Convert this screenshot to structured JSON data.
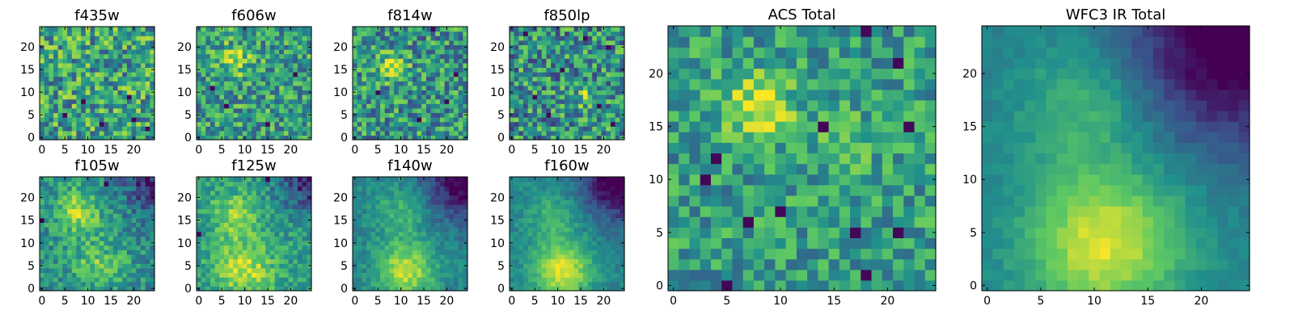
{
  "figure": {
    "colormap": "viridis",
    "colormap_stops": [
      "#440154",
      "#3b528b",
      "#21918c",
      "#5ec962",
      "#fde725"
    ],
    "frame_color": "#000000",
    "background": "#ffffff"
  },
  "chart_data": [
    {
      "type": "heatmap",
      "key": "f435w",
      "title": "f435w",
      "grid": [
        25,
        25
      ],
      "x": [
        0,
        24
      ],
      "y": [
        0,
        24
      ],
      "xticks": [
        0,
        5,
        10,
        15,
        20
      ],
      "yticks": [
        0,
        5,
        10,
        15,
        20
      ],
      "xtick_labels": [
        "0",
        "5",
        "10",
        "15",
        "20"
      ],
      "ytick_labels": [
        "0",
        "5",
        "10",
        "15",
        "20"
      ],
      "value_range": [
        0,
        1
      ],
      "pattern": "noise",
      "base": 0.58,
      "noise": 0.32,
      "blobs": [],
      "dark_spots": [
        [
          5,
          5
        ],
        [
          19,
          9
        ],
        [
          20,
          4
        ],
        [
          9,
          8
        ],
        [
          13,
          3
        ],
        [
          23,
          2
        ]
      ],
      "seed": 11
    },
    {
      "type": "heatmap",
      "key": "f606w",
      "title": "f606w",
      "grid": [
        25,
        25
      ],
      "x": [
        0,
        24
      ],
      "y": [
        0,
        24
      ],
      "xticks": [
        0,
        5,
        10,
        15,
        20
      ],
      "yticks": [
        0,
        5,
        10,
        15,
        20
      ],
      "xtick_labels": [
        "0",
        "5",
        "10",
        "15",
        "20"
      ],
      "ytick_labels": [
        "0",
        "5",
        "10",
        "15",
        "20"
      ],
      "value_range": [
        0,
        1
      ],
      "pattern": "noise",
      "base": 0.55,
      "noise": 0.28,
      "blobs": [
        {
          "cx": 8,
          "cy": 17,
          "amp": 0.3,
          "sig": 2.5
        }
      ],
      "dark_spots": [
        [
          6,
          7
        ],
        [
          15,
          3
        ],
        [
          21,
          14
        ],
        [
          3,
          11
        ]
      ],
      "seed": 23
    },
    {
      "type": "heatmap",
      "key": "f814w",
      "title": "f814w",
      "grid": [
        25,
        25
      ],
      "x": [
        0,
        24
      ],
      "y": [
        0,
        24
      ],
      "xticks": [
        0,
        5,
        10,
        15,
        20
      ],
      "yticks": [
        0,
        5,
        10,
        15,
        20
      ],
      "xtick_labels": [
        "0",
        "5",
        "10",
        "15",
        "20"
      ],
      "ytick_labels": [
        "0",
        "5",
        "10",
        "15",
        "20"
      ],
      "value_range": [
        0,
        1
      ],
      "pattern": "noise",
      "base": 0.52,
      "noise": 0.3,
      "blobs": [
        {
          "cx": 8,
          "cy": 16,
          "amp": 0.35,
          "sig": 2.2
        }
      ],
      "dark_spots": [
        [
          17,
          24
        ],
        [
          5,
          10
        ],
        [
          14,
          4
        ],
        [
          20,
          8
        ],
        [
          22,
          14
        ]
      ],
      "seed": 37
    },
    {
      "type": "heatmap",
      "key": "f850lp",
      "title": "f850lp",
      "grid": [
        25,
        25
      ],
      "x": [
        0,
        24
      ],
      "y": [
        0,
        24
      ],
      "xticks": [
        0,
        5,
        10,
        15,
        20
      ],
      "yticks": [
        0,
        5,
        10,
        15,
        20
      ],
      "xtick_labels": [
        "0",
        "5",
        "10",
        "15",
        "20"
      ],
      "ytick_labels": [
        "0",
        "5",
        "10",
        "15",
        "20"
      ],
      "value_range": [
        0,
        1
      ],
      "pattern": "noise",
      "base": 0.5,
      "noise": 0.32,
      "blobs": [
        {
          "cx": 16,
          "cy": 9,
          "amp": 0.25,
          "sig": 2.0
        }
      ],
      "dark_spots": [
        [
          3,
          23
        ],
        [
          16,
          22
        ],
        [
          21,
          20
        ],
        [
          11,
          15
        ],
        [
          19,
          7
        ],
        [
          5,
          9
        ],
        [
          22,
          3
        ],
        [
          8,
          5
        ]
      ],
      "seed": 41
    },
    {
      "type": "heatmap",
      "key": "f105w",
      "title": "f105w",
      "grid": [
        25,
        25
      ],
      "x": [
        0,
        24
      ],
      "y": [
        0,
        24
      ],
      "xticks": [
        0,
        5,
        10,
        15,
        20
      ],
      "yticks": [
        0,
        5,
        10,
        15,
        20
      ],
      "xtick_labels": [
        "0",
        "5",
        "10",
        "15",
        "20"
      ],
      "ytick_labels": [
        "0",
        "5",
        "10",
        "15",
        "20"
      ],
      "value_range": [
        0,
        1
      ],
      "pattern": "smooth",
      "base": 0.5,
      "noise": 0.18,
      "blobs": [
        {
          "cx": 8,
          "cy": 17,
          "amp": 0.35,
          "sig": 3.5
        },
        {
          "cx": 12,
          "cy": 5,
          "amp": 0.25,
          "sig": 4
        }
      ],
      "corner_dark": {
        "cx": 24,
        "cy": 24,
        "amp": 0.35,
        "sig": 5
      },
      "dark_spots": [
        [
          14,
          23
        ],
        [
          23,
          23
        ],
        [
          0,
          15
        ]
      ],
      "seed": 53
    },
    {
      "type": "heatmap",
      "key": "f125w",
      "title": "f125w",
      "grid": [
        25,
        25
      ],
      "x": [
        0,
        24
      ],
      "y": [
        0,
        24
      ],
      "xticks": [
        0,
        5,
        10,
        15,
        20
      ],
      "yticks": [
        0,
        5,
        10,
        15,
        20
      ],
      "xtick_labels": [
        "0",
        "5",
        "10",
        "15",
        "20"
      ],
      "ytick_labels": [
        "0",
        "5",
        "10",
        "15",
        "20"
      ],
      "value_range": [
        0,
        1
      ],
      "pattern": "smooth",
      "base": 0.55,
      "noise": 0.15,
      "blobs": [
        {
          "cx": 8,
          "cy": 16,
          "amp": 0.3,
          "sig": 3.5
        },
        {
          "cx": 10,
          "cy": 4,
          "amp": 0.35,
          "sig": 4.5
        }
      ],
      "corner_dark": {
        "cx": 24,
        "cy": 24,
        "amp": 0.4,
        "sig": 5
      },
      "dark_spots": [
        [
          0,
          12
        ],
        [
          15,
          24
        ],
        [
          22,
          22
        ]
      ],
      "seed": 67
    },
    {
      "type": "heatmap",
      "key": "f140w",
      "title": "f140w",
      "grid": [
        25,
        25
      ],
      "x": [
        0,
        24
      ],
      "y": [
        0,
        24
      ],
      "xticks": [
        0,
        5,
        10,
        15,
        20
      ],
      "yticks": [
        0,
        5,
        10,
        15,
        20
      ],
      "xtick_labels": [
        "0",
        "5",
        "10",
        "15",
        "20"
      ],
      "ytick_labels": [
        "0",
        "5",
        "10",
        "15",
        "20"
      ],
      "value_range": [
        0,
        1
      ],
      "pattern": "smooth",
      "base": 0.45,
      "noise": 0.1,
      "blobs": [
        {
          "cx": 10,
          "cy": 17,
          "amp": 0.2,
          "sig": 4
        },
        {
          "cx": 11,
          "cy": 4,
          "amp": 0.45,
          "sig": 4.5
        }
      ],
      "corner_dark": {
        "cx": 24,
        "cy": 24,
        "amp": 0.5,
        "sig": 6
      },
      "dark_spots": [],
      "seed": 79
    },
    {
      "type": "heatmap",
      "key": "f160w",
      "title": "f160w",
      "grid": [
        25,
        25
      ],
      "x": [
        0,
        24
      ],
      "y": [
        0,
        24
      ],
      "xticks": [
        0,
        5,
        10,
        15,
        20
      ],
      "yticks": [
        0,
        5,
        10,
        15,
        20
      ],
      "xtick_labels": [
        "0",
        "5",
        "10",
        "15",
        "20"
      ],
      "ytick_labels": [
        "0",
        "5",
        "10",
        "15",
        "20"
      ],
      "value_range": [
        0,
        1
      ],
      "pattern": "smooth",
      "base": 0.45,
      "noise": 0.08,
      "blobs": [
        {
          "cx": 9,
          "cy": 16,
          "amp": 0.2,
          "sig": 4
        },
        {
          "cx": 11,
          "cy": 4,
          "amp": 0.5,
          "sig": 4.5
        }
      ],
      "corner_dark": {
        "cx": 24,
        "cy": 24,
        "amp": 0.55,
        "sig": 6
      },
      "dark_spots": [],
      "seed": 83
    },
    {
      "type": "heatmap",
      "key": "acs_total",
      "title": "ACS Total",
      "grid": [
        25,
        25
      ],
      "x": [
        0,
        24
      ],
      "y": [
        0,
        24
      ],
      "xticks": [
        0,
        5,
        10,
        15,
        20
      ],
      "yticks": [
        0,
        5,
        10,
        15,
        20
      ],
      "xtick_labels": [
        "0",
        "5",
        "10",
        "15",
        "20"
      ],
      "ytick_labels": [
        "0",
        "5",
        "10",
        "15",
        "20"
      ],
      "value_range": [
        0,
        1
      ],
      "pattern": "noise",
      "base": 0.55,
      "noise": 0.22,
      "blobs": [
        {
          "cx": 8,
          "cy": 17,
          "amp": 0.4,
          "sig": 2.2
        },
        {
          "cx": 16,
          "cy": 14,
          "amp": 0.15,
          "sig": 2
        }
      ],
      "dark_spots": [
        [
          5,
          0
        ],
        [
          18,
          24
        ],
        [
          14,
          15
        ],
        [
          4,
          12
        ],
        [
          21,
          21
        ],
        [
          7,
          6
        ],
        [
          22,
          15
        ],
        [
          17,
          5
        ],
        [
          21,
          5
        ],
        [
          10,
          7
        ],
        [
          3,
          10
        ],
        [
          18,
          1
        ]
      ],
      "seed": 97
    },
    {
      "type": "heatmap",
      "key": "wfc3_ir_total",
      "title": "WFC3 IR Total",
      "grid": [
        25,
        25
      ],
      "x": [
        0,
        24
      ],
      "y": [
        0,
        24
      ],
      "xticks": [
        0,
        5,
        10,
        15,
        20
      ],
      "yticks": [
        0,
        5,
        10,
        15,
        20
      ],
      "xtick_labels": [
        "0",
        "5",
        "10",
        "15",
        "20"
      ],
      "ytick_labels": [
        "0",
        "5",
        "10",
        "15",
        "20"
      ],
      "value_range": [
        0,
        1
      ],
      "pattern": "smooth",
      "base": 0.45,
      "noise": 0.05,
      "blobs": [
        {
          "cx": 9,
          "cy": 17,
          "amp": 0.2,
          "sig": 4
        },
        {
          "cx": 11,
          "cy": 4,
          "amp": 0.5,
          "sig": 5
        }
      ],
      "corner_dark": {
        "cx": 24,
        "cy": 24,
        "amp": 0.6,
        "sig": 7
      },
      "dark_spots": [],
      "seed": 101
    }
  ]
}
